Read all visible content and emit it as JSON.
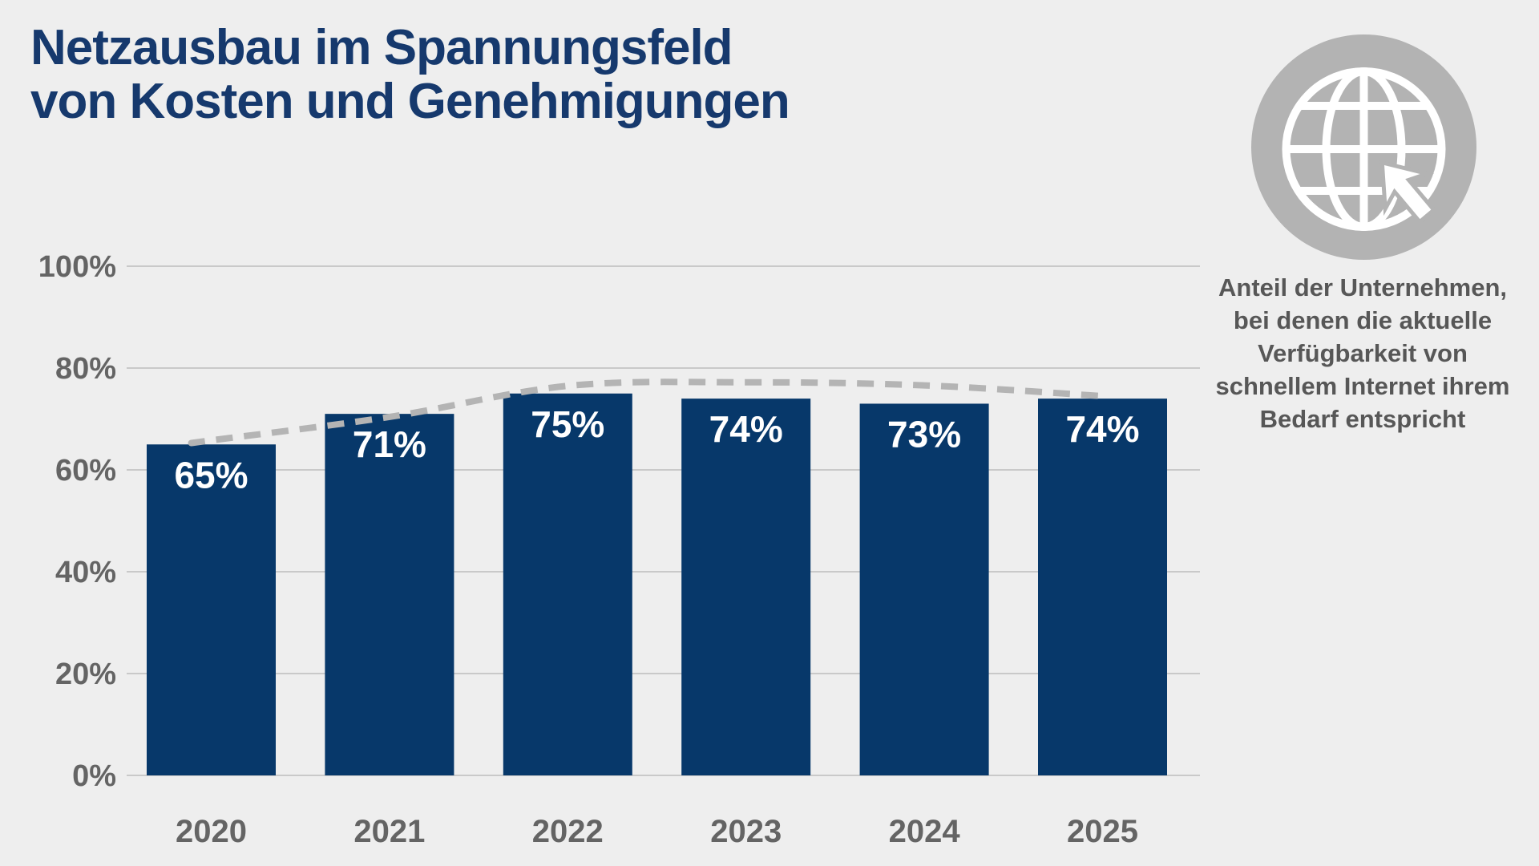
{
  "page": {
    "background": "#eeeeee"
  },
  "title": {
    "text": "Netzausbau im Spannungsfeld\nvon Kosten und Genehmigungen",
    "color": "#16396d"
  },
  "annotation": {
    "text": "Anteil der Unternehmen,\nbei denen die aktuelle\nVerfügbarkeit von\nschnellem Internet ihrem\nBedarf entspricht",
    "color": "#575757"
  },
  "icon": {
    "name": "globe-with-cursor",
    "circle_color": "#b3b3b3",
    "glyph_color": "#ffffff"
  },
  "chart_data": {
    "type": "bar",
    "categories": [
      "2020",
      "2021",
      "2022",
      "2023",
      "2024",
      "2025"
    ],
    "values": [
      65,
      71,
      75,
      74,
      73,
      74
    ],
    "unit": "%",
    "bar_labels": [
      "65%",
      "71%",
      "75%",
      "74%",
      "73%",
      "74%"
    ],
    "y_tick_values": [
      0,
      20,
      40,
      60,
      80,
      100
    ],
    "y_tick_labels": [
      "0%",
      "20%",
      "40%",
      "60%",
      "80%",
      "100%"
    ],
    "ylim": [
      0,
      100
    ],
    "grid": true,
    "legend": "none",
    "bar_color": "#07386a",
    "bar_label_color": "#ffffff",
    "axis_label_color": "#646464",
    "gridline_color": "#c9c9c9",
    "trend": {
      "type": "dashed-curve",
      "color": "#b4b4b4",
      "values": [
        65.8,
        70.4,
        76.5,
        77.2,
        76.6,
        74.5
      ]
    }
  }
}
